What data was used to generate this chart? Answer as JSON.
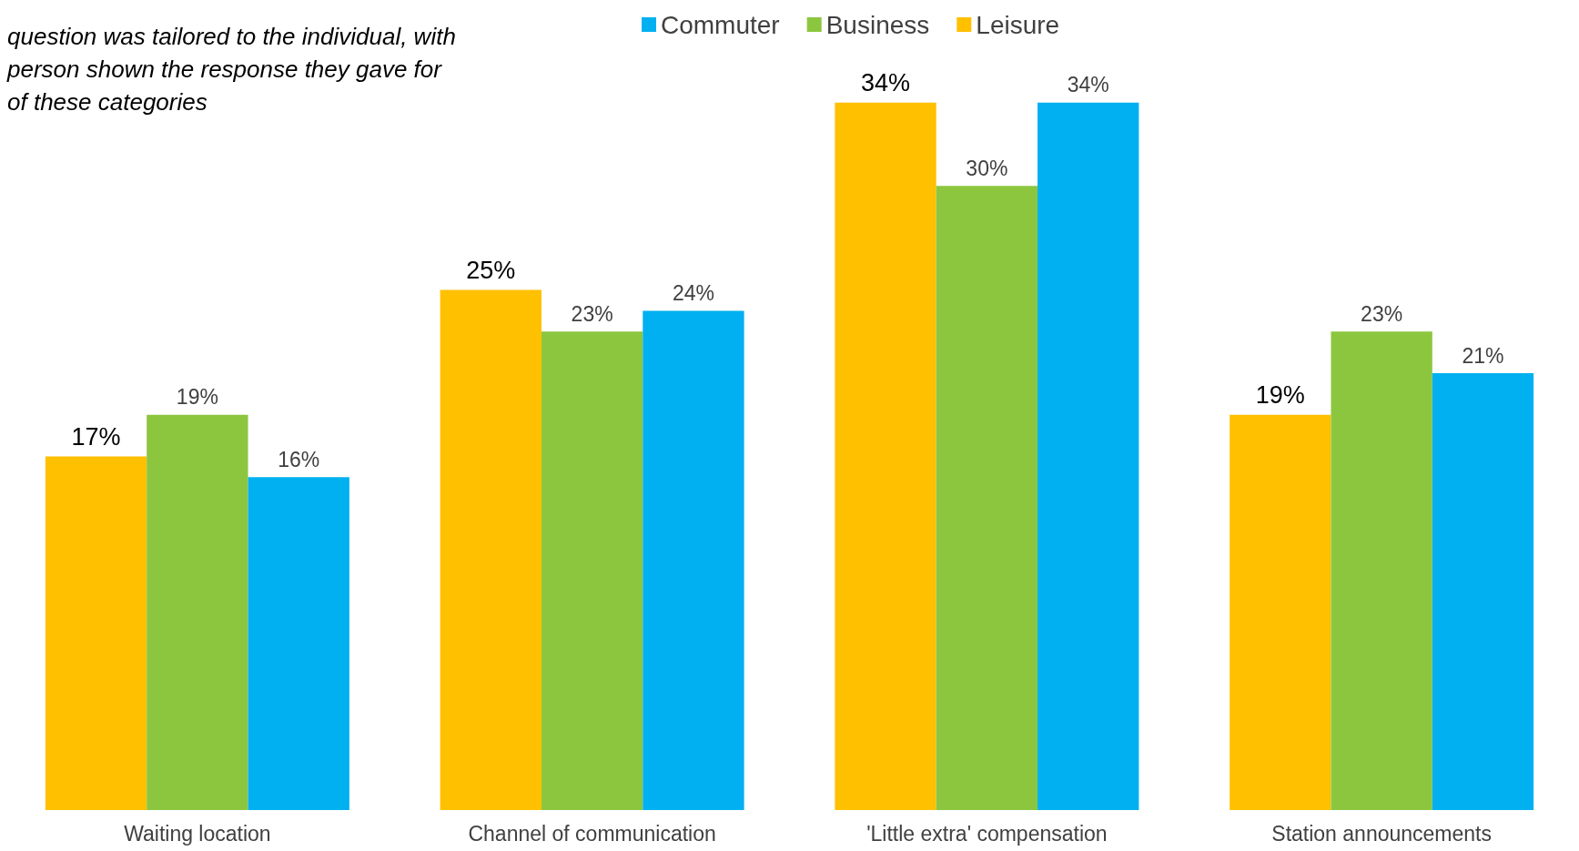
{
  "chart_data": {
    "type": "bar",
    "categories": [
      "Waiting location",
      "Channel of communication",
      "'Little extra' compensation",
      "Station announcements"
    ],
    "series": [
      {
        "name": "Leisure",
        "color": "#ffc000",
        "values": [
          17,
          25,
          34,
          19
        ],
        "value_labels": [
          "17%",
          "25%",
          "34%",
          "19%"
        ]
      },
      {
        "name": "Business",
        "color": "#8cc63f",
        "values": [
          19,
          23,
          30,
          23
        ],
        "value_labels": [
          "19%",
          "23%",
          "30%",
          "23%"
        ]
      },
      {
        "name": "Commuter",
        "color": "#00b0f0",
        "values": [
          16,
          24,
          34,
          21
        ],
        "value_labels": [
          "16%",
          "24%",
          "34%",
          "21%"
        ]
      }
    ],
    "legend": "top",
    "annotations": [
      "question was tailored to the individual, with\nperson shown the response they gave for\nof these categories"
    ]
  }
}
